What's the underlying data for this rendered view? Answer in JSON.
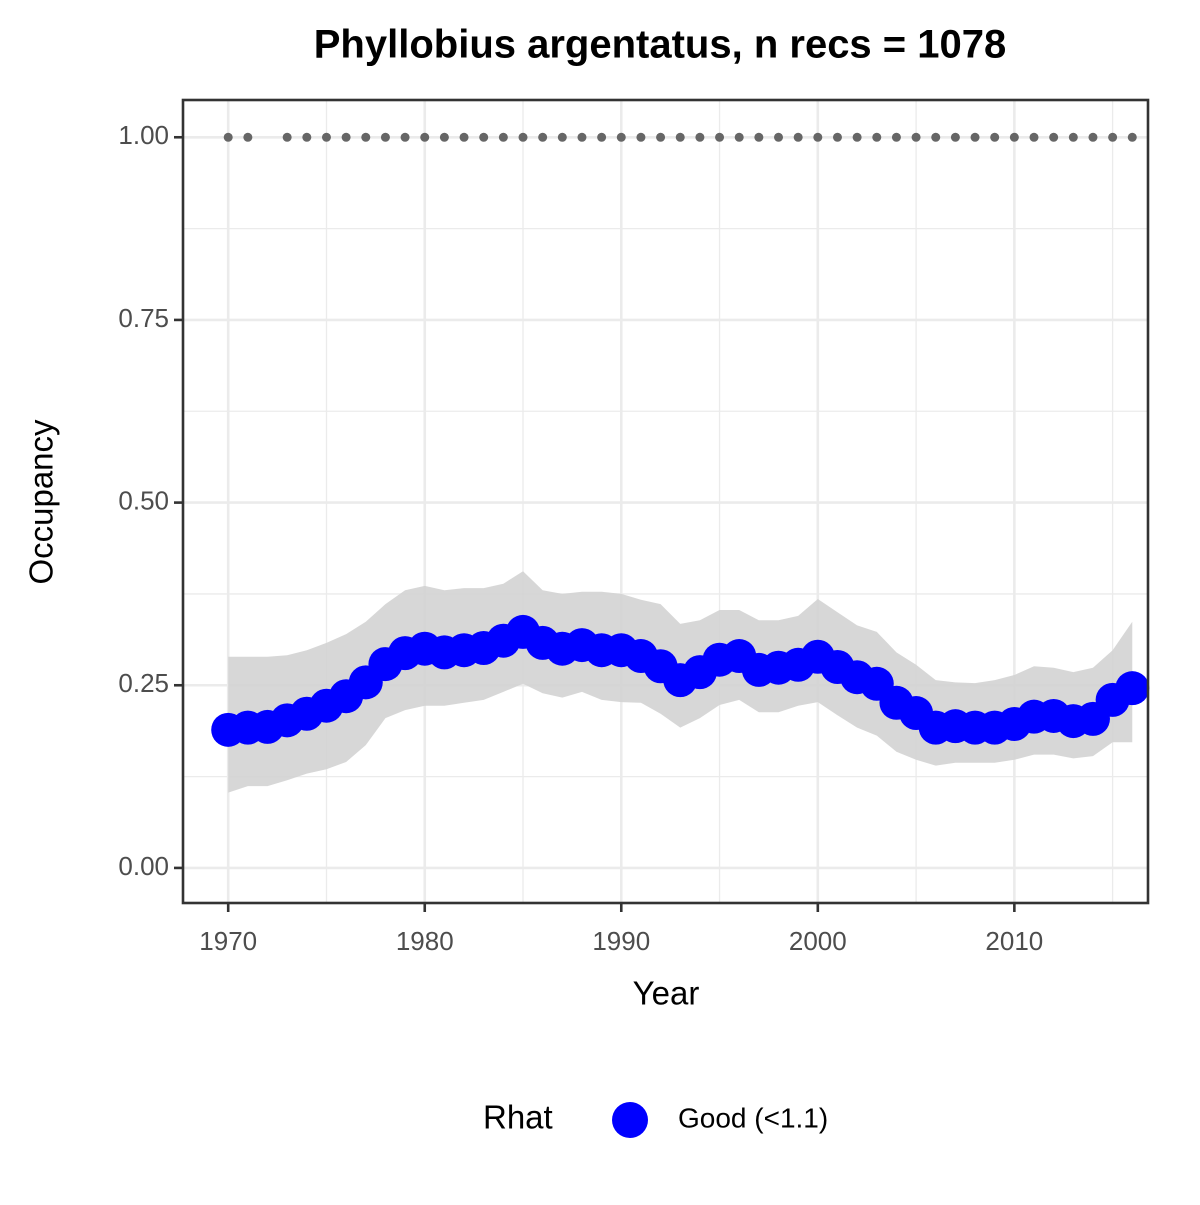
{
  "chart_data": {
    "type": "line",
    "title": "Phyllobius argentatus, n recs = 1078",
    "x_label": "Year",
    "y_label": "Occupancy",
    "legend_title": "Rhat",
    "x": [
      1970,
      1971,
      1972,
      1973,
      1974,
      1975,
      1976,
      1977,
      1978,
      1979,
      1980,
      1981,
      1982,
      1983,
      1984,
      1985,
      1986,
      1987,
      1988,
      1989,
      1990,
      1991,
      1992,
      1993,
      1994,
      1995,
      1996,
      1997,
      1998,
      1999,
      2000,
      2001,
      2002,
      2003,
      2004,
      2005,
      2006,
      2007,
      2008,
      2009,
      2010,
      2011,
      2012,
      2013,
      2014,
      2015,
      2016
    ],
    "series": [
      {
        "name": "Good (<1.1)",
        "color": "#0000ff",
        "values": [
          0.189,
          0.192,
          0.193,
          0.202,
          0.211,
          0.222,
          0.235,
          0.254,
          0.279,
          0.294,
          0.3,
          0.295,
          0.298,
          0.301,
          0.311,
          0.323,
          0.308,
          0.3,
          0.305,
          0.298,
          0.298,
          0.29,
          0.276,
          0.257,
          0.268,
          0.285,
          0.29,
          0.271,
          0.274,
          0.278,
          0.289,
          0.275,
          0.261,
          0.252,
          0.226,
          0.212,
          0.192,
          0.194,
          0.192,
          0.192,
          0.197,
          0.207,
          0.208,
          0.201,
          0.204,
          0.23,
          0.246
        ],
        "lower": [
          0.103,
          0.112,
          0.112,
          0.12,
          0.129,
          0.135,
          0.145,
          0.168,
          0.205,
          0.216,
          0.222,
          0.222,
          0.226,
          0.23,
          0.241,
          0.252,
          0.239,
          0.233,
          0.241,
          0.23,
          0.227,
          0.226,
          0.211,
          0.192,
          0.205,
          0.223,
          0.23,
          0.213,
          0.213,
          0.222,
          0.227,
          0.209,
          0.192,
          0.181,
          0.159,
          0.148,
          0.14,
          0.144,
          0.144,
          0.144,
          0.148,
          0.155,
          0.155,
          0.15,
          0.153,
          0.172,
          0.172
        ],
        "upper": [
          0.289,
          0.289,
          0.289,
          0.291,
          0.298,
          0.308,
          0.32,
          0.337,
          0.361,
          0.38,
          0.386,
          0.38,
          0.383,
          0.383,
          0.389,
          0.406,
          0.38,
          0.375,
          0.378,
          0.378,
          0.375,
          0.367,
          0.361,
          0.334,
          0.339,
          0.353,
          0.353,
          0.339,
          0.339,
          0.345,
          0.368,
          0.35,
          0.332,
          0.323,
          0.295,
          0.278,
          0.257,
          0.254,
          0.253,
          0.257,
          0.264,
          0.276,
          0.274,
          0.268,
          0.274,
          0.298,
          0.337
        ],
        "band_color": "#d3d3d3"
      }
    ],
    "rug": {
      "color": "#666666",
      "values": [
        1,
        1,
        null,
        1,
        1,
        1,
        1,
        1,
        1,
        1,
        1,
        1,
        1,
        1,
        1,
        1,
        1,
        1,
        1,
        1,
        1,
        1,
        1,
        1,
        1,
        1,
        1,
        1,
        1,
        1,
        1,
        1,
        1,
        1,
        1,
        1,
        1,
        1,
        1,
        1,
        1,
        1,
        1,
        1,
        1,
        1,
        1
      ]
    },
    "xlim": [
      1967.7,
      2016.8
    ],
    "xticks": [
      1970,
      1980,
      1990,
      2000,
      2010
    ],
    "xminor": [
      1975,
      1985,
      1995,
      2005,
      2015
    ],
    "ylim": [
      -0.048,
      1.051
    ],
    "yticks": [
      {
        "value": 0,
        "label": "0.00"
      },
      {
        "value": 0.25,
        "label": "0.25"
      },
      {
        "value": 0.5,
        "label": "0.50"
      },
      {
        "value": 0.75,
        "label": "0.75"
      },
      {
        "value": 1,
        "label": "1.00"
      }
    ],
    "yminor": [
      0.125,
      0.375,
      0.625,
      0.875
    ],
    "grid": true
  }
}
